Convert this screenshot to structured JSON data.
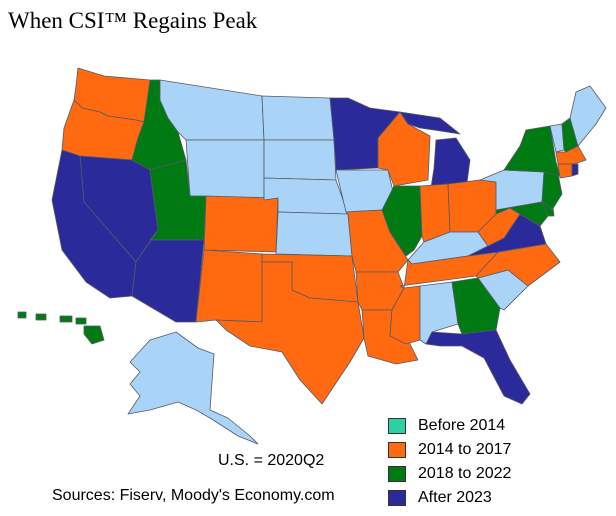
{
  "title": "When CSI™ Regains Peak",
  "colors": {
    "before_2014": "#2bd1a3",
    "y2014_2017": "#ff6a10",
    "y2018_2022": "#007a12",
    "after_2023": "#2b2a9a",
    "no_peak_shown": "#a9d3f7",
    "border": "#555a66"
  },
  "legend": {
    "items": [
      {
        "label": "Before 2014",
        "color": "#2bd1a3"
      },
      {
        "label": "2014 to 2017",
        "color": "#ff6a10"
      },
      {
        "label": "2018 to 2022",
        "color": "#007a12"
      },
      {
        "label": "After 2023",
        "color": "#2b2a9a"
      }
    ]
  },
  "us_note": "U.S. = 2020Q2",
  "sources": "Sources: Fiserv, Moody's Economy.com",
  "state_categories": {
    "WA": "2014 to 2017",
    "OR": "2014 to 2017",
    "CO": "2014 to 2017",
    "NM": "2014 to 2017",
    "TX": "2014 to 2017",
    "OK": "2014 to 2017",
    "AR": "2014 to 2017",
    "LA": "2014 to 2017",
    "MS": "2014 to 2017",
    "MO": "2014 to 2017",
    "WI": "2014 to 2017",
    "IN": "2014 to 2017",
    "OH": "2014 to 2017",
    "TN": "2014 to 2017",
    "NC": "2014 to 2017",
    "WV": "2014 to 2017",
    "MA": "2014 to 2017",
    "CT": "2014 to 2017",
    "ID": "2018 to 2022",
    "UT": "2018 to 2022",
    "IL": "2018 to 2022",
    "GA": "2018 to 2022",
    "NY": "2018 to 2022",
    "NH": "2018 to 2022",
    "NJ": "2018 to 2022",
    "MD": "2018 to 2022",
    "DE": "2018 to 2022",
    "HI": "2018 to 2022",
    "CA": "After 2023",
    "NV": "After 2023",
    "AZ": "After 2023",
    "MN": "After 2023",
    "MI": "After 2023",
    "FL": "After 2023",
    "VA": "After 2023",
    "RI": "After 2023"
  }
}
